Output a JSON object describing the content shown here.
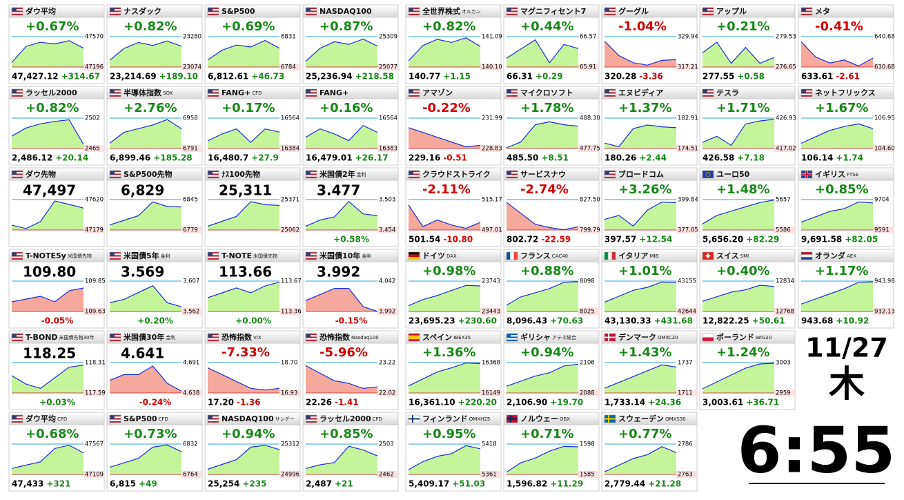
{
  "left_tiles": [
    {
      "name": "ダウ平均",
      "flag": "us",
      "change": "+0.67%",
      "price": "47,427.12",
      "diff": "+314.67",
      "hi": "47570",
      "lo": "47196",
      "spark": [
        47250,
        47450,
        47500,
        47480,
        47520,
        47427
      ]
    },
    {
      "name": "ナスダック",
      "flag": "us",
      "change": "+0.82%",
      "price": "23,214.69",
      "diff": "+189.10",
      "hi": "23280",
      "lo": "23074",
      "spark": [
        23120,
        23200,
        23240,
        23220,
        23250,
        23215
      ]
    },
    {
      "name": "S&P500",
      "flag": "us",
      "change": "+0.69%",
      "price": "6,812.61",
      "diff": "+46.73",
      "hi": "6831",
      "lo": "6784",
      "spark": [
        6795,
        6810,
        6818,
        6815,
        6825,
        6813
      ]
    },
    {
      "name": "NASDAQ100",
      "flag": "us",
      "change": "+0.87%",
      "price": "25,236.94",
      "diff": "+218.58",
      "hi": "25309",
      "lo": "25077",
      "spark": [
        25120,
        25220,
        25270,
        25250,
        25290,
        25237
      ]
    },
    {
      "name": "ラッセル2000",
      "flag": "us",
      "change": "+0.82%",
      "price": "2,486.12",
      "diff": "+20.14",
      "hi": "2502",
      "lo": "2465",
      "spark": [
        2480,
        2490,
        2495,
        2498,
        2500,
        2470
      ]
    },
    {
      "name": "半導体指数",
      "tag": "SOX",
      "flag": "us",
      "change": "+2.76%",
      "price": "6,899.46",
      "diff": "+185.28",
      "hi": "6958",
      "lo": "6791",
      "spark": [
        6820,
        6880,
        6900,
        6920,
        6950,
        6899
      ]
    },
    {
      "name": "FANG+",
      "tag": "CFD",
      "flag": "us",
      "change": "+0.17%",
      "price": "16,480.7",
      "diff": "+27.9",
      "hi": "16564",
      "lo": "16384",
      "spark": [
        16430,
        16470,
        16500,
        16420,
        16500,
        16481
      ]
    },
    {
      "name": "FANG+",
      "flag": "us",
      "change": "+0.16%",
      "price": "16,479.01",
      "diff": "+26.17",
      "hi": "16564",
      "lo": "16383",
      "spark": [
        16450,
        16500,
        16470,
        16430,
        16520,
        16479
      ]
    },
    {
      "name": "ダウ先物",
      "flag": "us",
      "big": "47,497",
      "hi": "47620",
      "lo": "47179",
      "spark": [
        47250,
        47200,
        47300,
        47600,
        47550,
        47497
      ]
    },
    {
      "name": "S&P500先物",
      "flag": "us",
      "big": "6,829",
      "hi": "6845",
      "lo": "6779",
      "spark": [
        6790,
        6800,
        6810,
        6840,
        6830,
        6829
      ]
    },
    {
      "name": "ﾅｽ100先物",
      "flag": "us",
      "big": "25,311",
      "hi": "25371",
      "lo": "25062",
      "spark": [
        25100,
        25150,
        25200,
        25350,
        25320,
        25311
      ]
    },
    {
      "name": "米国債2年",
      "tag": "金利",
      "flag": "us",
      "big": "3.477",
      "change": "+0.58%",
      "hi": "3.503",
      "lo": "3.454",
      "spark": [
        3.46,
        3.47,
        3.475,
        3.5,
        3.48,
        3.477
      ]
    },
    {
      "name": "T-NOTE5y",
      "tag": "米国債先物",
      "flag": "us",
      "big": "109.80",
      "change": "-0.05%",
      "hi": "109.85",
      "lo": "109.63",
      "spark": [
        109.7,
        109.72,
        109.74,
        109.7,
        109.78,
        109.8
      ]
    },
    {
      "name": "米国債5年",
      "tag": "金利",
      "flag": "us",
      "big": "3.569",
      "change": "+0.20%",
      "hi": "3.607",
      "lo": "3.562",
      "spark": [
        3.575,
        3.58,
        3.59,
        3.6,
        3.575,
        3.569
      ]
    },
    {
      "name": "T-NOTE",
      "tag": "米国債先物",
      "flag": "us",
      "big": "113.66",
      "change": "+0.00%",
      "hi": "113.67",
      "lo": "113.36",
      "spark": [
        113.5,
        113.55,
        113.6,
        113.55,
        113.62,
        113.66
      ]
    },
    {
      "name": "米国債10年",
      "tag": "金利",
      "flag": "us",
      "big": "3.992",
      "change": "-0.15%",
      "hi": "4.042",
      "lo": "3.992",
      "spark": [
        4.01,
        4.02,
        4.03,
        4.03,
        4.0,
        3.992
      ]
    },
    {
      "name": "T-BOND",
      "tag": "米国債先物30年",
      "flag": "us",
      "big": "118.25",
      "change": "+0.03%",
      "hi": "118.31",
      "lo": "117.59",
      "spark": [
        118.0,
        117.8,
        117.7,
        117.95,
        118.2,
        118.25
      ]
    },
    {
      "name": "米国債30年",
      "tag": "金利",
      "flag": "us",
      "big": "4.641",
      "change": "-0.24%",
      "hi": "4.691",
      "lo": "4.638",
      "spark": [
        4.66,
        4.67,
        4.67,
        4.685,
        4.655,
        4.641
      ]
    },
    {
      "name": "恐怖指数",
      "tag": "VIX",
      "flag": "us",
      "change": "-7.33%",
      "price": "17.20",
      "diff": "-1.36",
      "hi": "18.70",
      "lo": "16.93",
      "spark": [
        18.4,
        18.0,
        17.6,
        17.2,
        17.1,
        17.2
      ]
    },
    {
      "name": "恐怖指数",
      "tag": "Nasdaq100",
      "flag": "us",
      "change": "-5.96%",
      "price": "22.26",
      "diff": "-1.41",
      "hi": "23.22",
      "lo": "22.02",
      "spark": [
        23.1,
        22.8,
        22.5,
        22.4,
        22.2,
        22.26
      ]
    },
    {
      "name": "ダウ平均",
      "tag": "CFD",
      "flag": "us",
      "change": "+0.68%",
      "price": "47,433",
      "diff": "+321",
      "hi": "47567",
      "lo": "47109",
      "spark": [
        47200,
        47250,
        47300,
        47500,
        47550,
        47433
      ]
    },
    {
      "name": "S&P500",
      "tag": "CFD",
      "flag": "us",
      "change": "+0.73%",
      "price": "6,815",
      "diff": "+49",
      "hi": "6832",
      "lo": "6764",
      "spark": [
        6780,
        6790,
        6800,
        6825,
        6830,
        6815
      ]
    },
    {
      "name": "NASDAQ100",
      "tag": "サンデー",
      "flag": "us",
      "change": "+0.94%",
      "price": "25,254",
      "diff": "+235",
      "hi": "25312",
      "lo": "24996",
      "spark": [
        25050,
        25100,
        25150,
        25280,
        25300,
        25254
      ]
    },
    {
      "name": "ラッセル2000",
      "tag": "CFD",
      "flag": "us",
      "change": "+0.85%",
      "price": "2,487",
      "diff": "+21",
      "hi": "2503",
      "lo": "2462",
      "spark": [
        2470,
        2475,
        2478,
        2500,
        2495,
        2487
      ]
    }
  ],
  "right_tiles": [
    {
      "name": "全世界株式",
      "tag": "オルカン",
      "flag": "us",
      "change": "+0.82%",
      "price": "140.77",
      "diff": "+1.15",
      "hi": "141.09",
      "lo": "140.10",
      "spark": [
        140.3,
        140.8,
        141.0,
        140.9,
        141.05,
        140.77
      ]
    },
    {
      "name": "マグニフィセント7",
      "flag": "us",
      "change": "+0.44%",
      "price": "66.31",
      "diff": "+0.29",
      "hi": "66.57",
      "lo": "65.91",
      "spark": [
        66.1,
        66.3,
        66.5,
        66.0,
        66.4,
        66.31
      ]
    },
    {
      "name": "グーグル",
      "flag": "us",
      "change": "-1.04%",
      "price": "320.28",
      "diff": "-3.36",
      "hi": "329.94",
      "lo": "317.21",
      "spark": [
        328,
        322,
        319,
        318,
        320,
        320.28
      ]
    },
    {
      "name": "アップル",
      "flag": "us",
      "change": "+0.21%",
      "price": "277.55",
      "diff": "+0.58",
      "hi": "279.53",
      "lo": "276.65",
      "spark": [
        278,
        279,
        277,
        278.5,
        277,
        277.55
      ]
    },
    {
      "name": "メタ",
      "flag": "us",
      "change": "-0.41%",
      "price": "633.61",
      "diff": "-2.61",
      "hi": "640.68",
      "lo": "630.68",
      "spark": [
        639,
        634,
        632,
        633,
        631,
        633.61
      ]
    },
    {
      "name": "アマゾン",
      "flag": "us",
      "change": "-0.22%",
      "price": "229.16",
      "diff": "-0.51",
      "hi": "231.99",
      "lo": "228.83",
      "spark": [
        231,
        230.5,
        230,
        229.5,
        229,
        229.16
      ]
    },
    {
      "name": "マイクロソフト",
      "flag": "us",
      "change": "+1.78%",
      "price": "485.50",
      "diff": "+8.51",
      "hi": "488.30",
      "lo": "477.75",
      "spark": [
        478,
        480,
        486,
        487,
        486,
        485.5
      ]
    },
    {
      "name": "エヌビディア",
      "flag": "us",
      "change": "+1.37%",
      "price": "180.26",
      "diff": "+2.44",
      "hi": "182.91",
      "lo": "174.51",
      "spark": [
        176,
        175,
        180,
        181,
        180.5,
        180.26
      ]
    },
    {
      "name": "テスラ",
      "flag": "us",
      "change": "+1.71%",
      "price": "426.58",
      "diff": "+7.18",
      "hi": "426.93",
      "lo": "417.02",
      "spark": [
        419,
        421,
        418,
        425,
        426,
        426.58
      ]
    },
    {
      "name": "ネットフリックス",
      "flag": "us",
      "change": "+1.67%",
      "price": "106.14",
      "diff": "+1.74",
      "hi": "106.95",
      "lo": "104.60",
      "spark": [
        105,
        105.5,
        106,
        106.3,
        106.5,
        106.14
      ]
    },
    {
      "name": "クラウドストライク",
      "flag": "us",
      "change": "-2.11%",
      "price": "501.54",
      "diff": "-10.80",
      "hi": "515.17",
      "lo": "497.01",
      "spark": [
        512,
        499,
        503,
        500,
        498,
        501.54
      ]
    },
    {
      "name": "サービスナウ",
      "flag": "us",
      "change": "-2.74%",
      "price": "802.72",
      "diff": "-22.59",
      "hi": "827.50",
      "lo": "799.79",
      "spark": [
        825,
        815,
        805,
        802,
        800,
        802.72
      ]
    },
    {
      "name": "ブロードコム",
      "flag": "us",
      "change": "+3.26%",
      "price": "397.57",
      "diff": "+12.54",
      "hi": "399.84",
      "lo": "377.05",
      "spark": [
        385,
        388,
        380,
        392,
        398,
        397.57
      ]
    },
    {
      "name": "ユーロ50",
      "flag": "eu",
      "change": "+1.48%",
      "price": "5,656.20",
      "diff": "+82.29",
      "hi": "5657",
      "lo": "5586",
      "spark": [
        5600,
        5620,
        5630,
        5640,
        5650,
        5656.2
      ]
    },
    {
      "name": "イギリス",
      "tag": "FTSE",
      "flag": "gb",
      "change": "+0.85%",
      "price": "9,691.58",
      "diff": "+82.05",
      "hi": "9704",
      "lo": "9591",
      "spark": [
        9620,
        9640,
        9660,
        9670,
        9695,
        9691.58
      ]
    },
    {
      "name": "ドイツ",
      "tag": "DAX",
      "flag": "de",
      "change": "+0.98%",
      "price": "23,695.23",
      "diff": "+230.60",
      "hi": "23743",
      "lo": "23443",
      "spark": [
        23500,
        23560,
        23600,
        23650,
        23700,
        23695.23
      ]
    },
    {
      "name": "フランス",
      "tag": "CAC40",
      "flag": "fr",
      "change": "+0.88%",
      "price": "8,096.43",
      "diff": "+70.63",
      "hi": "8098",
      "lo": "8025",
      "spark": [
        8040,
        8060,
        8070,
        8080,
        8095,
        8096.43
      ]
    },
    {
      "name": "イタリア",
      "tag": "MIB",
      "flag": "it",
      "change": "+1.01%",
      "price": "43,130.33",
      "diff": "+431.68",
      "hi": "43155",
      "lo": "42644",
      "spark": [
        42800,
        42900,
        43000,
        43050,
        43140,
        43130.33
      ]
    },
    {
      "name": "スイス",
      "tag": "SMI",
      "flag": "ch",
      "change": "+0.40%",
      "price": "12,822.25",
      "diff": "+50.61",
      "hi": "12834",
      "lo": "12768",
      "spark": [
        12790,
        12800,
        12810,
        12815,
        12825,
        12822.25
      ]
    },
    {
      "name": "オランダ",
      "tag": "AEX",
      "flag": "nl",
      "change": "+1.17%",
      "price": "943.68",
      "diff": "+10.92",
      "hi": "943.98",
      "lo": "932.13",
      "spark": [
        935,
        937,
        939,
        941,
        943.5,
        943.68
      ]
    },
    {
      "name": "スペイン",
      "tag": "IBEX35",
      "flag": "es",
      "change": "+1.36%",
      "price": "16,361.10",
      "diff": "+220.20",
      "hi": "16368",
      "lo": "16149",
      "spark": [
        16200,
        16250,
        16300,
        16330,
        16365,
        16361.1
      ]
    },
    {
      "name": "ギリシャ",
      "tag": "アテネ総合",
      "flag": "gr",
      "change": "+0.94%",
      "price": "2,106.90",
      "diff": "+19.70",
      "hi": "2106",
      "lo": "2088",
      "spark": [
        2092,
        2095,
        2098,
        2100,
        2104,
        2105
      ]
    },
    {
      "name": "デンマーク",
      "tag": "OMXC20",
      "flag": "dk",
      "change": "+1.43%",
      "price": "1,733.14",
      "diff": "+24.36",
      "hi": "1737",
      "lo": "1711",
      "spark": [
        1715,
        1720,
        1725,
        1730,
        1735,
        1733.14
      ]
    },
    {
      "name": "ポーランド",
      "tag": "WIG20",
      "flag": "pl",
      "change": "+1.24%",
      "price": "3,003.61",
      "diff": "+36.71",
      "hi": "3003",
      "lo": "2959",
      "spark": [
        2965,
        2975,
        2985,
        2995,
        3001,
        3002
      ]
    },
    {
      "name": "フィンランド",
      "tag": "OMXH25",
      "flag": "fi",
      "change": "+0.95%",
      "price": "5,409.17",
      "diff": "+51.03",
      "hi": "5418",
      "lo": "5361",
      "spark": [
        5370,
        5385,
        5395,
        5400,
        5415,
        5409.17
      ]
    },
    {
      "name": "ノルウェー",
      "tag": "OBX",
      "flag": "no",
      "change": "+0.71%",
      "price": "1,596.82",
      "diff": "+11.29",
      "hi": "1598",
      "lo": "1585",
      "spark": [
        1586,
        1590,
        1592,
        1595,
        1597,
        1596.82
      ]
    },
    {
      "name": "スウェーデン",
      "tag": "OMXS30",
      "flag": "se",
      "change": "+0.77%",
      "price": "2,779.44",
      "diff": "+21.28",
      "hi": "2786",
      "lo": "2763",
      "spark": [
        2765,
        2770,
        2775,
        2778,
        2784,
        2779.44
      ]
    }
  ],
  "date": {
    "day": "11/27",
    "weekday": "木"
  },
  "time": "6:55"
}
